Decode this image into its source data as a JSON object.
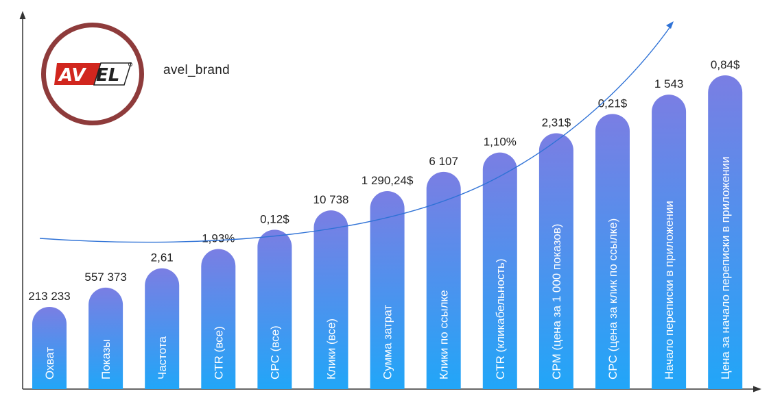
{
  "brand": {
    "logo_text": "AVEL",
    "handle": "avel_brand"
  },
  "colors": {
    "bar_top": "#7a7ee3",
    "bar_bottom": "#21a6f8",
    "trend_line": "#2f72d6",
    "axis": "#333333",
    "logo_ring": "#8e3b3b",
    "logo_red": "#d1261e"
  },
  "chart_data": {
    "type": "bar",
    "title": "",
    "xlabel": "",
    "ylabel": "",
    "categories": [
      "Охват",
      "Показы",
      "Частота",
      "CTR (все)",
      "CPC (все)",
      "Клики (все)",
      "Сумма затрат",
      "Клики по ссылке",
      "CTR (кликабельность)",
      "CPM (цена за 1 000 показов)",
      "CPC (цена за клик по ссылке)",
      "Начало переписки в приложении",
      "Цена за начало переписки в приложении"
    ],
    "value_labels": [
      "213 233",
      "557 373",
      "2,61",
      "1,93%",
      "0,12$",
      "10 738",
      "1 290,24$",
      "6 107",
      "1,10%",
      "2,31$",
      "0,21$",
      "1 543",
      "0,84$"
    ],
    "series": [
      {
        "values": [
          1,
          2,
          3,
          4,
          5,
          6,
          7,
          8,
          9,
          10,
          11,
          12,
          13
        ]
      }
    ],
    "grid": false,
    "legend": "none",
    "trend_line": "exponential"
  }
}
